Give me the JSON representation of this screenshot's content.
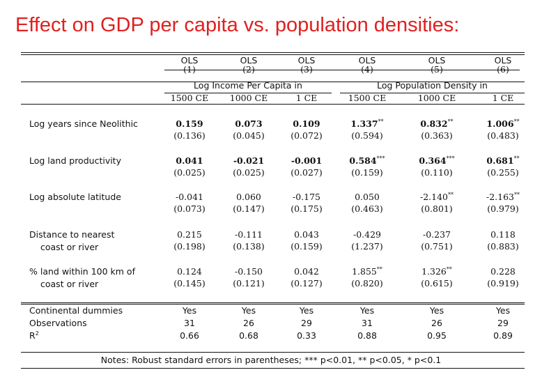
{
  "title": "Effect on GDP per capita vs. population densities:",
  "models": [
    "OLS",
    "OLS",
    "OLS",
    "OLS",
    "OLS",
    "OLS"
  ],
  "numbers": [
    "(1)",
    "(2)",
    "(3)",
    "(4)",
    "(5)",
    "(6)"
  ],
  "groups": [
    "Log Income Per Capita in",
    "Log Population Density in"
  ],
  "years": [
    "1500 CE",
    "1000 CE",
    "1 CE",
    "1500 CE",
    "1000 CE",
    "1 CE"
  ],
  "rows": [
    {
      "label": "Log years since Neolithic",
      "label2": "",
      "coef": [
        "0.159",
        "0.073",
        "0.109",
        "1.337",
        "0.832",
        "1.006"
      ],
      "stars": [
        "",
        "",
        "",
        "**",
        "**",
        "**"
      ],
      "bold": true,
      "se": [
        "(0.136)",
        "(0.045)",
        "(0.072)",
        "(0.594)",
        "(0.363)",
        "(0.483)"
      ]
    },
    {
      "label": "Log land productivity",
      "label2": "",
      "coef": [
        "0.041",
        "-0.021",
        "-0.001",
        "0.584",
        "0.364",
        "0.681"
      ],
      "stars": [
        "",
        "",
        "",
        "***",
        "***",
        "**"
      ],
      "bold": true,
      "se": [
        "(0.025)",
        "(0.025)",
        "(0.027)",
        "(0.159)",
        "(0.110)",
        "(0.255)"
      ]
    },
    {
      "label": "Log absolute latitude",
      "label2": "",
      "coef": [
        "-0.041",
        "0.060",
        "-0.175",
        "0.050",
        "-2.140",
        "-2.163"
      ],
      "stars": [
        "",
        "",
        "",
        "",
        "**",
        "**"
      ],
      "bold": false,
      "se": [
        "(0.073)",
        "(0.147)",
        "(0.175)",
        "(0.463)",
        "(0.801)",
        "(0.979)"
      ]
    },
    {
      "label": "Distance to nearest",
      "label2": "coast or river",
      "coef": [
        "0.215",
        "-0.111",
        "0.043",
        "-0.429",
        "-0.237",
        "0.118"
      ],
      "stars": [
        "",
        "",
        "",
        "",
        "",
        ""
      ],
      "bold": false,
      "se": [
        "(0.198)",
        "(0.138)",
        "(0.159)",
        "(1.237)",
        "(0.751)",
        "(0.883)"
      ]
    },
    {
      "label": "% land within 100 km of",
      "label2": "coast or river",
      "coef": [
        "0.124",
        "-0.150",
        "0.042",
        "1.855",
        "1.326",
        "0.228"
      ],
      "stars": [
        "",
        "",
        "",
        "**",
        "**",
        ""
      ],
      "bold": false,
      "se": [
        "(0.145)",
        "(0.121)",
        "(0.127)",
        "(0.820)",
        "(0.615)",
        "(0.919)"
      ]
    }
  ],
  "footer": {
    "labels": [
      "Continental dummies",
      "Observations",
      "R"
    ],
    "r2_sup": "2",
    "dummies": [
      "Yes",
      "Yes",
      "Yes",
      "Yes",
      "Yes",
      "Yes"
    ],
    "observations": [
      "31",
      "26",
      "29",
      "31",
      "26",
      "29"
    ],
    "r2": [
      "0.66",
      "0.68",
      "0.33",
      "0.88",
      "0.95",
      "0.89"
    ]
  },
  "notes": "Notes: Robust standard errors in parentheses; *** p<0.01, ** p<0.05, * p<0.1"
}
